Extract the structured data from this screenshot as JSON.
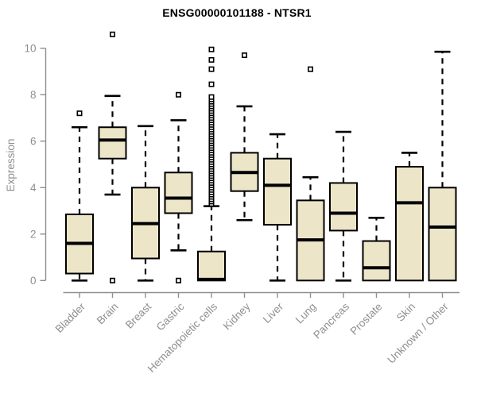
{
  "chart_data": {
    "type": "boxplot",
    "title": "ENSG00000101188 - NTSR1",
    "ylabel": "Expression",
    "ylim": [
      0,
      10
    ],
    "yticks": [
      0,
      2,
      4,
      6,
      8,
      10
    ],
    "grid": false,
    "legend": "none",
    "categories": [
      "Bladder",
      "Brain",
      "Breast",
      "Gastric",
      "Hematopoietic cells",
      "Kidney",
      "Liver",
      "Lung",
      "Pancreas",
      "Prostate",
      "Skin",
      "Unknown / Other"
    ],
    "series": [
      {
        "category": "Bladder",
        "whisker_low": 0.0,
        "q1": 0.3,
        "median": 1.6,
        "q3": 2.85,
        "whisker_high": 6.6,
        "outliers": [
          7.2
        ]
      },
      {
        "category": "Brain",
        "whisker_low": 3.7,
        "q1": 5.25,
        "median": 6.05,
        "q3": 6.6,
        "whisker_high": 7.95,
        "outliers": [
          10.6,
          0.0
        ]
      },
      {
        "category": "Breast",
        "whisker_low": 0.0,
        "q1": 0.95,
        "median": 2.45,
        "q3": 4.0,
        "whisker_high": 6.65,
        "outliers": []
      },
      {
        "category": "Gastric",
        "whisker_low": 1.3,
        "q1": 2.9,
        "median": 3.55,
        "q3": 4.65,
        "whisker_high": 6.9,
        "outliers": [
          8.0,
          0.0
        ]
      },
      {
        "category": "Hematopoietic cells",
        "whisker_low": null,
        "q1": 0.0,
        "median": 0.05,
        "q3": 1.25,
        "whisker_high": 3.2,
        "outliers": [
          3.3,
          3.4,
          3.5,
          3.6,
          3.7,
          3.8,
          3.9,
          4.0,
          4.1,
          4.2,
          4.3,
          4.4,
          4.5,
          4.6,
          4.7,
          4.8,
          4.9,
          5.0,
          5.1,
          5.2,
          5.3,
          5.4,
          5.5,
          5.6,
          5.7,
          5.8,
          5.9,
          6.0,
          6.1,
          6.2,
          6.3,
          6.4,
          6.5,
          6.6,
          6.7,
          6.8,
          6.9,
          7.0,
          7.1,
          7.2,
          7.3,
          7.4,
          7.5,
          7.6,
          7.7,
          7.8,
          7.9,
          8.45,
          9.1,
          9.5,
          9.95
        ]
      },
      {
        "category": "Kidney",
        "whisker_low": 2.6,
        "q1": 3.85,
        "median": 4.65,
        "q3": 5.5,
        "whisker_high": 7.5,
        "outliers": [
          9.7
        ]
      },
      {
        "category": "Liver",
        "whisker_low": 0.0,
        "q1": 2.4,
        "median": 4.1,
        "q3": 5.25,
        "whisker_high": 6.3,
        "outliers": []
      },
      {
        "category": "Lung",
        "whisker_low": null,
        "q1": 0.0,
        "median": 1.75,
        "q3": 3.45,
        "whisker_high": 4.45,
        "outliers": [
          9.1
        ]
      },
      {
        "category": "Pancreas",
        "whisker_low": 0.0,
        "q1": 2.15,
        "median": 2.9,
        "q3": 4.2,
        "whisker_high": 6.4,
        "outliers": []
      },
      {
        "category": "Prostate",
        "whisker_low": null,
        "q1": 0.0,
        "median": 0.55,
        "q3": 1.7,
        "whisker_high": 2.7,
        "outliers": []
      },
      {
        "category": "Skin",
        "whisker_low": null,
        "q1": 0.0,
        "median": 3.35,
        "q3": 4.9,
        "whisker_high": 5.5,
        "outliers": []
      },
      {
        "category": "Unknown / Other",
        "whisker_low": null,
        "q1": 0.0,
        "median": 2.3,
        "q3": 4.0,
        "whisker_high": 9.85,
        "outliers": []
      }
    ],
    "style": {
      "box_fill": "#ECE5C8",
      "box_stroke": "#000000",
      "median_color": "#000000",
      "whisker_color": "#000000",
      "outlier_color": "#000000",
      "axis_color": "#8f8f8f",
      "label_color": "#8f8f8f",
      "title_color": "#000000",
      "background": "#ffffff"
    }
  }
}
